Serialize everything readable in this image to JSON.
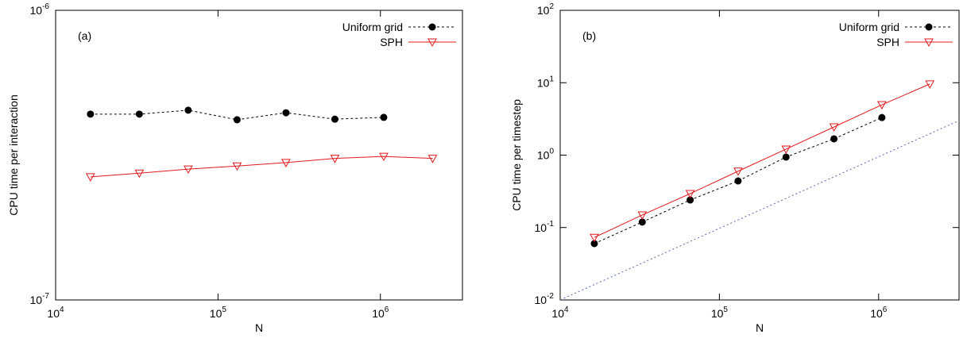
{
  "chart_data": [
    {
      "type": "line",
      "panel_label": "(a)",
      "xlabel": "N",
      "ylabel": "CPU time per interaction",
      "log_x": true,
      "log_y": true,
      "legend": "top-right",
      "xlim": [
        10000,
        3200000
      ],
      "ylim": [
        1e-07,
        1e-06
      ],
      "xticks": [
        {
          "value": 10000,
          "label": "10",
          "exponent": "4"
        },
        {
          "value": 100000,
          "label": "10",
          "exponent": "5"
        },
        {
          "value": 1000000,
          "label": "10",
          "exponent": "6"
        }
      ],
      "yticks": [
        {
          "value": 1e-07,
          "label": "10",
          "exponent": "-7"
        },
        {
          "value": 1e-06,
          "label": "10",
          "exponent": "-6"
        }
      ],
      "x": [
        16384,
        32768,
        65536,
        131072,
        262144,
        524288,
        1048576,
        2097152
      ],
      "series": [
        {
          "name": "Uniform grid",
          "color": "#000000",
          "marker": "circle",
          "dash": "dashed",
          "values": [
            4.38e-07,
            4.38e-07,
            4.52e-07,
            4.19e-07,
            4.43e-07,
            4.21e-07,
            4.27e-07,
            null
          ]
        },
        {
          "name": "SPH",
          "color": "#e41a1c",
          "marker": "triangle-down",
          "dash": "solid",
          "values": [
            2.66e-07,
            2.74e-07,
            2.83e-07,
            2.9e-07,
            2.98e-07,
            3.08e-07,
            3.13e-07,
            3.08e-07
          ]
        }
      ]
    },
    {
      "type": "line",
      "panel_label": "(b)",
      "xlabel": "N",
      "ylabel": "CPU time per timestep",
      "log_x": true,
      "log_y": true,
      "legend": "top-right",
      "xlim": [
        10000,
        3200000
      ],
      "ylim": [
        0.01,
        100
      ],
      "xticks": [
        {
          "value": 10000,
          "label": "10",
          "exponent": "4"
        },
        {
          "value": 100000,
          "label": "10",
          "exponent": "5"
        },
        {
          "value": 1000000,
          "label": "10",
          "exponent": "6"
        }
      ],
      "yticks": [
        {
          "value": 0.01,
          "label": "10",
          "exponent": "-2"
        },
        {
          "value": 0.1,
          "label": "10",
          "exponent": "-1"
        },
        {
          "value": 1,
          "label": "10",
          "exponent": "0"
        },
        {
          "value": 10,
          "label": "10",
          "exponent": "1"
        },
        {
          "value": 100,
          "label": "10",
          "exponent": "2"
        }
      ],
      "x": [
        16384,
        32768,
        65536,
        131072,
        262144,
        524288,
        1048576,
        2097152
      ],
      "series": [
        {
          "name": "Uniform grid",
          "color": "#000000",
          "marker": "circle",
          "dash": "dashed",
          "values": [
            0.06,
            0.119,
            0.24,
            0.44,
            0.94,
            1.68,
            3.3,
            null
          ]
        },
        {
          "name": "SPH",
          "color": "#e41a1c",
          "marker": "triangle-down",
          "dash": "solid",
          "values": [
            0.073,
            0.149,
            0.294,
            0.6,
            1.21,
            2.45,
            4.96,
            9.6
          ]
        }
      ],
      "reference_line": {
        "color": "#5566aa",
        "x": [
          10000,
          3200000
        ],
        "values": [
          0.01,
          3.0
        ]
      }
    }
  ]
}
